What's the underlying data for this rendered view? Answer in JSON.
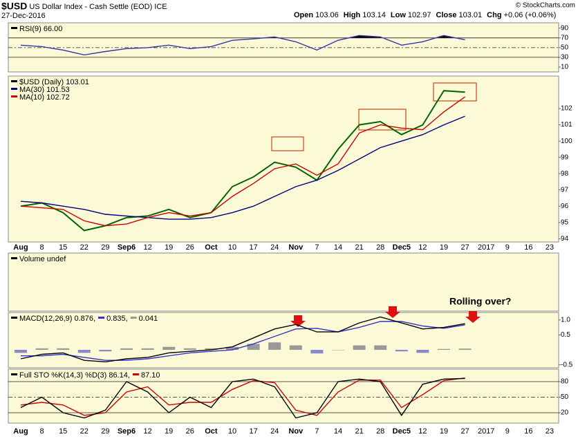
{
  "header": {
    "symbol": "$USD",
    "name": "US Dollar Index - Cash Settle (EOD) ICE",
    "date": "27-Dec-2016",
    "quote": [
      {
        "label": "Open",
        "value": "103.06"
      },
      {
        "label": "High",
        "value": "103.14"
      },
      {
        "label": "Low",
        "value": "102.97"
      },
      {
        "label": "Close",
        "value": "103.01"
      },
      {
        "label": "Chg",
        "value": "+0.06 (+0.06%)"
      }
    ],
    "credit": "© StockCharts.com"
  },
  "chart_data": [
    {
      "type": "line",
      "legend": [
        {
          "text": "RSI(9) 66.00",
          "color": "#000000"
        }
      ],
      "ylim": [
        0,
        101
      ],
      "yticks": [
        90,
        70,
        50,
        30,
        10
      ],
      "reference_lines": [
        70,
        30
      ],
      "dashed_lines": [
        50
      ],
      "fill_above": 70,
      "series": [
        {
          "color": "#3333aa",
          "values": [
            55,
            52,
            45,
            35,
            42,
            48,
            50,
            55,
            48,
            52,
            65,
            68,
            72,
            62,
            45,
            65,
            75,
            72,
            55,
            62,
            75,
            66,
            null,
            null,
            null,
            null
          ]
        }
      ]
    },
    {
      "type": "price",
      "legend": [
        {
          "text": "$USD (Daily) 103.01",
          "color": "#000000"
        },
        {
          "text": "MA(30) 101.53",
          "color": "#000080"
        },
        {
          "text": "MA(10) 102.72",
          "color": "#cc0000"
        }
      ],
      "categories": [
        "Aug",
        "8",
        "15",
        "22",
        "29",
        "Sep6",
        "12",
        "19",
        "26",
        "Oct",
        "10",
        "17",
        "24",
        "Nov",
        "7",
        "14",
        "21",
        "28",
        "Dec5",
        "12",
        "19",
        "27",
        "2017",
        "9",
        "16",
        "23"
      ],
      "ylim": [
        93.8,
        104
      ],
      "yticks": [
        94,
        95,
        96,
        97,
        98,
        99,
        100,
        101,
        102
      ],
      "series": [
        {
          "color": "#006600",
          "values": [
            96.0,
            96.2,
            95.6,
            94.5,
            94.8,
            95.3,
            95.4,
            95.8,
            95.3,
            95.6,
            97.2,
            97.8,
            98.7,
            98.4,
            97.6,
            99.5,
            101.0,
            101.2,
            100.4,
            101.0,
            103.1,
            103.01,
            null,
            null,
            null,
            null
          ]
        },
        {
          "color": "#000080",
          "values": [
            96.3,
            96.2,
            96.0,
            95.8,
            95.5,
            95.4,
            95.3,
            95.2,
            95.2,
            95.3,
            95.6,
            96.0,
            96.6,
            97.2,
            97.6,
            98.2,
            98.9,
            99.6,
            100.0,
            100.4,
            101.0,
            101.53,
            null,
            null,
            null,
            null
          ]
        },
        {
          "color": "#cc0000",
          "values": [
            96.0,
            95.9,
            95.8,
            95.1,
            94.8,
            94.9,
            95.3,
            95.6,
            95.4,
            95.6,
            96.6,
            97.4,
            98.3,
            98.6,
            97.9,
            98.6,
            100.5,
            101.0,
            100.8,
            100.7,
            101.8,
            102.72,
            null,
            null,
            null,
            null
          ]
        }
      ]
    },
    {
      "type": "empty",
      "legend": [
        {
          "text": "Volume undef",
          "color": "#000000"
        }
      ]
    },
    {
      "type": "line",
      "legend": [
        {
          "text": "MACD(12,26,9) 0.876,",
          "color": "#000000"
        },
        {
          "text": "0.835,",
          "color": "#3333cc"
        },
        {
          "text": "0.041",
          "color": "#999999"
        }
      ],
      "annotation": "Rolling over?",
      "ylim": [
        -0.6,
        1.25
      ],
      "yticks": [
        {
          "value": 1,
          "label": "1.0"
        },
        0.5,
        -0.5
      ],
      "series": [
        {
          "type": "bar",
          "color": "#999999",
          "negative_color": "#8888cc",
          "values": [
            -0.1,
            0.05,
            0.05,
            -0.1,
            -0.05,
            0.05,
            0.05,
            0.1,
            0.05,
            0.05,
            0.1,
            0.2,
            0.25,
            0.15,
            -0.12,
            0,
            0.15,
            0.15,
            -0.05,
            -0.1,
            0.03,
            0.041,
            null,
            null,
            null,
            null
          ]
        },
        {
          "color": "#3333cc",
          "values": [
            -0.2,
            -0.2,
            -0.15,
            -0.25,
            -0.35,
            -0.35,
            -0.3,
            -0.2,
            -0.1,
            -0.05,
            0.0,
            0.2,
            0.45,
            0.7,
            0.72,
            0.6,
            0.75,
            0.95,
            0.95,
            0.8,
            0.72,
            0.835,
            null,
            null,
            null,
            null
          ]
        },
        {
          "color": "#000000",
          "values": [
            -0.3,
            -0.15,
            -0.1,
            -0.35,
            -0.4,
            -0.3,
            -0.25,
            -0.1,
            -0.05,
            0.0,
            0.1,
            0.4,
            0.7,
            0.85,
            0.6,
            0.6,
            0.9,
            1.1,
            0.9,
            0.7,
            0.75,
            0.876,
            null,
            null,
            null,
            null
          ]
        }
      ]
    },
    {
      "type": "line",
      "legend": [
        {
          "text": "Full STO %K(14,3) %D(3) 86.14,",
          "color": "#000000"
        },
        {
          "text": "87.10",
          "color": "#cc0000"
        }
      ],
      "ylim": [
        0,
        104
      ],
      "yticks": [
        80,
        50,
        20
      ],
      "reference_lines": [
        80,
        20
      ],
      "dashed_lines": [
        50
      ],
      "series": [
        {
          "color": "#cc0000",
          "values": [
            35,
            40,
            35,
            15,
            20,
            60,
            70,
            35,
            40,
            40,
            65,
            82,
            78,
            25,
            15,
            60,
            83,
            83,
            30,
            55,
            82,
            87.1,
            null,
            null,
            null,
            null
          ]
        },
        {
          "color": "#000000",
          "values": [
            30,
            50,
            20,
            10,
            25,
            80,
            60,
            20,
            50,
            30,
            80,
            85,
            70,
            10,
            20,
            80,
            85,
            80,
            15,
            75,
            85,
            86.14,
            null,
            null,
            null,
            null
          ]
        }
      ]
    }
  ]
}
